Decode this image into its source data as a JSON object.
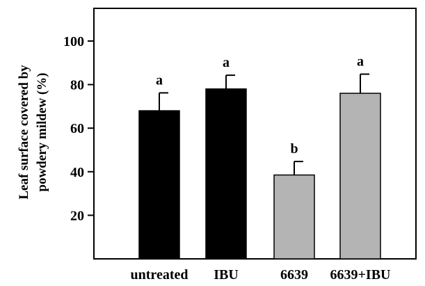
{
  "chart_data": {
    "type": "bar",
    "title": "",
    "xlabel": "",
    "ylabel_lines": [
      "Leaf surface covered by",
      "powdery mildew  (%)"
    ],
    "categories": [
      "untreated",
      "IBU",
      "6639",
      "6639+IBU"
    ],
    "values": [
      68,
      78,
      38.5,
      76
    ],
    "errors": [
      8.2,
      6.3,
      6.2,
      8.8
    ],
    "significance": [
      "a",
      "a",
      "b",
      "a"
    ],
    "bar_colors": [
      "#000000",
      "#000000",
      "#b4b4b4",
      "#b4b4b4"
    ],
    "ylim": [
      0,
      115
    ],
    "yticks": [
      20,
      40,
      60,
      80,
      100
    ],
    "grid": false
  }
}
